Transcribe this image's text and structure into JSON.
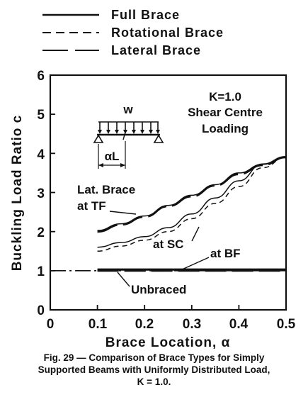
{
  "chart_data": {
    "type": "line",
    "xlabel": "Brace Location, α",
    "ylabel": "Buckling Load Ratio c",
    "xlim": [
      0,
      0.5
    ],
    "ylim": [
      0,
      6
    ],
    "xticks": [
      "0",
      "0.1",
      "0.2",
      "0.3",
      "0.4",
      "0.5"
    ],
    "yticks": [
      "0",
      "1",
      "2",
      "3",
      "4",
      "5",
      "6"
    ],
    "grid": false,
    "legend_position": "top-left, above plot",
    "legend": [
      {
        "label": "Full Brace",
        "style": "solid"
      },
      {
        "label": "Rotational Brace",
        "style": "dashed"
      },
      {
        "label": "Lateral Brace",
        "style": "long-dash"
      }
    ],
    "series": [
      {
        "style": "solid",
        "group": "at TF",
        "x": [
          0.1,
          0.15,
          0.2,
          0.25,
          0.3,
          0.35,
          0.4,
          0.45,
          0.5
        ],
        "y": [
          2.03,
          2.2,
          2.4,
          2.67,
          2.93,
          3.2,
          3.5,
          3.72,
          3.9
        ]
      },
      {
        "style": "long-dash",
        "group": "at TF",
        "x": [
          0.1,
          0.15,
          0.2,
          0.25,
          0.3,
          0.35,
          0.4,
          0.45,
          0.5
        ],
        "y": [
          2.0,
          2.18,
          2.38,
          2.65,
          2.9,
          3.18,
          3.47,
          3.7,
          3.9
        ]
      },
      {
        "style": "solid",
        "group": "at SC",
        "x": [
          0.1,
          0.15,
          0.2,
          0.25,
          0.3,
          0.35,
          0.4,
          0.45,
          0.5
        ],
        "y": [
          1.6,
          1.72,
          1.87,
          2.1,
          2.45,
          2.86,
          3.3,
          3.73,
          3.92
        ]
      },
      {
        "style": "dashed",
        "group": "at SC",
        "x": [
          0.1,
          0.15,
          0.2,
          0.25,
          0.3,
          0.35,
          0.4,
          0.45,
          0.5
        ],
        "y": [
          1.5,
          1.63,
          1.78,
          2.0,
          2.33,
          2.72,
          3.15,
          3.63,
          3.9
        ]
      },
      {
        "style": "solid-thick",
        "group": "at BF",
        "x": [
          0.1,
          0.2,
          0.3,
          0.4,
          0.5
        ],
        "y": [
          1.03,
          1.03,
          1.03,
          1.03,
          1.03
        ]
      },
      {
        "style": "long-dash",
        "group": "at BF",
        "x": [
          0.1,
          0.2,
          0.3,
          0.4,
          0.5
        ],
        "y": [
          1.0,
          1.0,
          1.0,
          1.0,
          1.0
        ]
      },
      {
        "style": "dash-dot",
        "group": "Unbraced",
        "x": [
          0.0,
          0.5
        ],
        "y": [
          1.0,
          1.0
        ]
      }
    ],
    "annotations": {
      "k_label": "K=1.0",
      "load_line1": "Shear Centre",
      "load_line2": "Loading",
      "tf_line1": "Lat. Brace",
      "tf_line2": "at TF",
      "sc": "at SC",
      "bf": "at BF",
      "unbraced": "Unbraced"
    },
    "inset": {
      "load": "w",
      "dimension": "αL"
    }
  },
  "caption": {
    "line1": "Fig. 29 — Comparison of Brace Types for Simply",
    "line2": "Supported Beams with Uniformly Distributed Load,",
    "line3": "K = 1.0."
  }
}
